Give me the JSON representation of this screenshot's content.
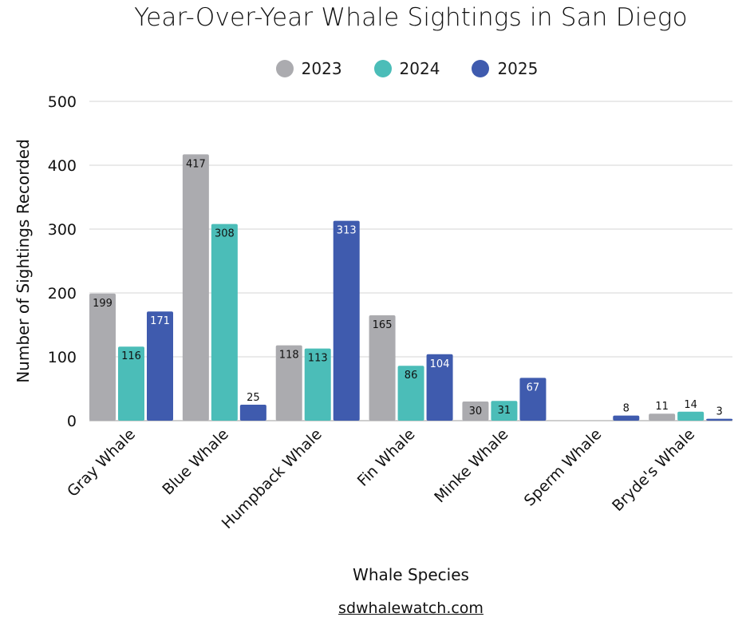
{
  "chart_data": {
    "type": "bar",
    "title": "Year-Over-Year Whale Sightings in San Diego",
    "xlabel": "Whale Species",
    "ylabel": "Number of Sightings Recorded",
    "ylim": [
      0,
      500
    ],
    "yticks": [
      0,
      100,
      200,
      300,
      400,
      500
    ],
    "grid": true,
    "legend_position": "top-center",
    "categories": [
      "Gray Whale",
      "Blue Whale",
      "Humpback Whale",
      "Fin Whale",
      "Minke Whale",
      "Sperm Whale",
      "Bryde's Whale"
    ],
    "series": [
      {
        "name": "2023",
        "color": "#ababaf",
        "values": [
          199,
          417,
          118,
          165,
          30,
          0,
          11
        ]
      },
      {
        "name": "2024",
        "color": "#4bbdb8",
        "values": [
          116,
          308,
          113,
          86,
          31,
          0,
          14
        ]
      },
      {
        "name": "2025",
        "color": "#3f5bae",
        "values": [
          171,
          25,
          313,
          104,
          67,
          8,
          3
        ]
      }
    ]
  },
  "source": "sdwhalewatch.com"
}
